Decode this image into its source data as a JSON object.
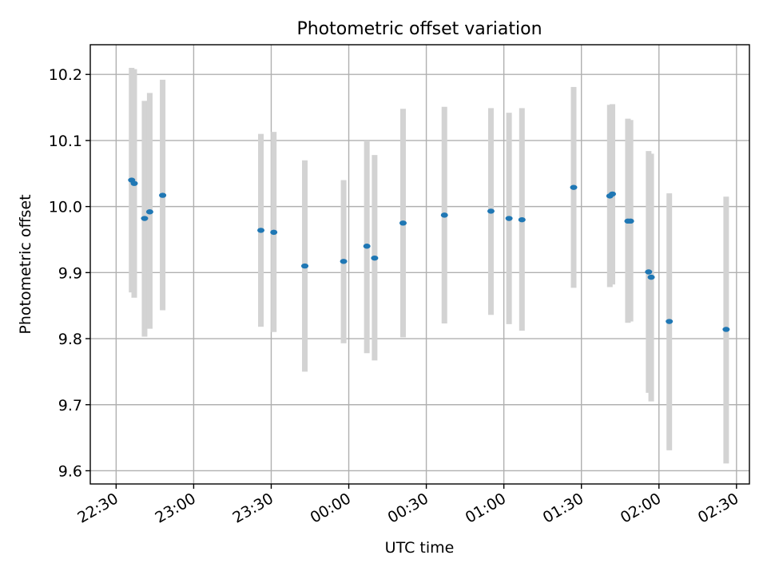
{
  "chart_data": {
    "type": "scatter",
    "title": "Photometric offset variation",
    "xlabel": "UTC time",
    "ylabel": "Photometric offset",
    "xlim": [
      "22:20",
      "02:35"
    ],
    "ylim": [
      9.58,
      10.245
    ],
    "x_ticks": [
      "22:30",
      "23:00",
      "23:30",
      "00:00",
      "00:30",
      "01:00",
      "01:30",
      "02:00",
      "02:30"
    ],
    "y_ticks": [
      "9.6",
      "9.7",
      "9.8",
      "9.9",
      "10.0",
      "10.1",
      "10.2"
    ],
    "grid": true,
    "point_color": "#1f77b4",
    "errorbar_color": "#d3d3d3",
    "points": [
      {
        "x": "22:36",
        "y": 10.04,
        "lo": 9.87,
        "hi": 10.21
      },
      {
        "x": "22:37",
        "y": 10.035,
        "lo": 9.862,
        "hi": 10.208
      },
      {
        "x": "22:41",
        "y": 9.982,
        "lo": 9.803,
        "hi": 10.16
      },
      {
        "x": "22:43",
        "y": 9.992,
        "lo": 9.815,
        "hi": 10.172
      },
      {
        "x": "22:48",
        "y": 10.017,
        "lo": 9.843,
        "hi": 10.192
      },
      {
        "x": "23:26",
        "y": 9.964,
        "lo": 9.818,
        "hi": 10.11
      },
      {
        "x": "23:31",
        "y": 9.961,
        "lo": 9.81,
        "hi": 10.113
      },
      {
        "x": "23:43",
        "y": 9.91,
        "lo": 9.75,
        "hi": 10.07
      },
      {
        "x": "23:58",
        "y": 9.917,
        "lo": 9.793,
        "hi": 10.04
      },
      {
        "x": "00:07",
        "y": 9.94,
        "lo": 9.778,
        "hi": 10.1
      },
      {
        "x": "00:10",
        "y": 9.922,
        "lo": 9.767,
        "hi": 10.078
      },
      {
        "x": "00:21",
        "y": 9.975,
        "lo": 9.802,
        "hi": 10.148
      },
      {
        "x": "00:37",
        "y": 9.987,
        "lo": 9.823,
        "hi": 10.151
      },
      {
        "x": "00:55",
        "y": 9.993,
        "lo": 9.836,
        "hi": 10.149
      },
      {
        "x": "01:02",
        "y": 9.982,
        "lo": 9.822,
        "hi": 10.142
      },
      {
        "x": "01:07",
        "y": 9.98,
        "lo": 9.812,
        "hi": 10.149
      },
      {
        "x": "01:27",
        "y": 10.029,
        "lo": 9.877,
        "hi": 10.181
      },
      {
        "x": "01:41",
        "y": 10.016,
        "lo": 9.878,
        "hi": 10.154
      },
      {
        "x": "01:42",
        "y": 10.019,
        "lo": 9.882,
        "hi": 10.155
      },
      {
        "x": "01:48",
        "y": 9.978,
        "lo": 9.824,
        "hi": 10.133
      },
      {
        "x": "01:49",
        "y": 9.978,
        "lo": 9.826,
        "hi": 10.131
      },
      {
        "x": "01:56",
        "y": 9.901,
        "lo": 9.718,
        "hi": 10.084
      },
      {
        "x": "01:57",
        "y": 9.893,
        "lo": 9.705,
        "hi": 10.08
      },
      {
        "x": "02:04",
        "y": 9.826,
        "lo": 9.631,
        "hi": 10.02
      },
      {
        "x": "02:26",
        "y": 9.814,
        "lo": 9.611,
        "hi": 10.015
      }
    ]
  }
}
